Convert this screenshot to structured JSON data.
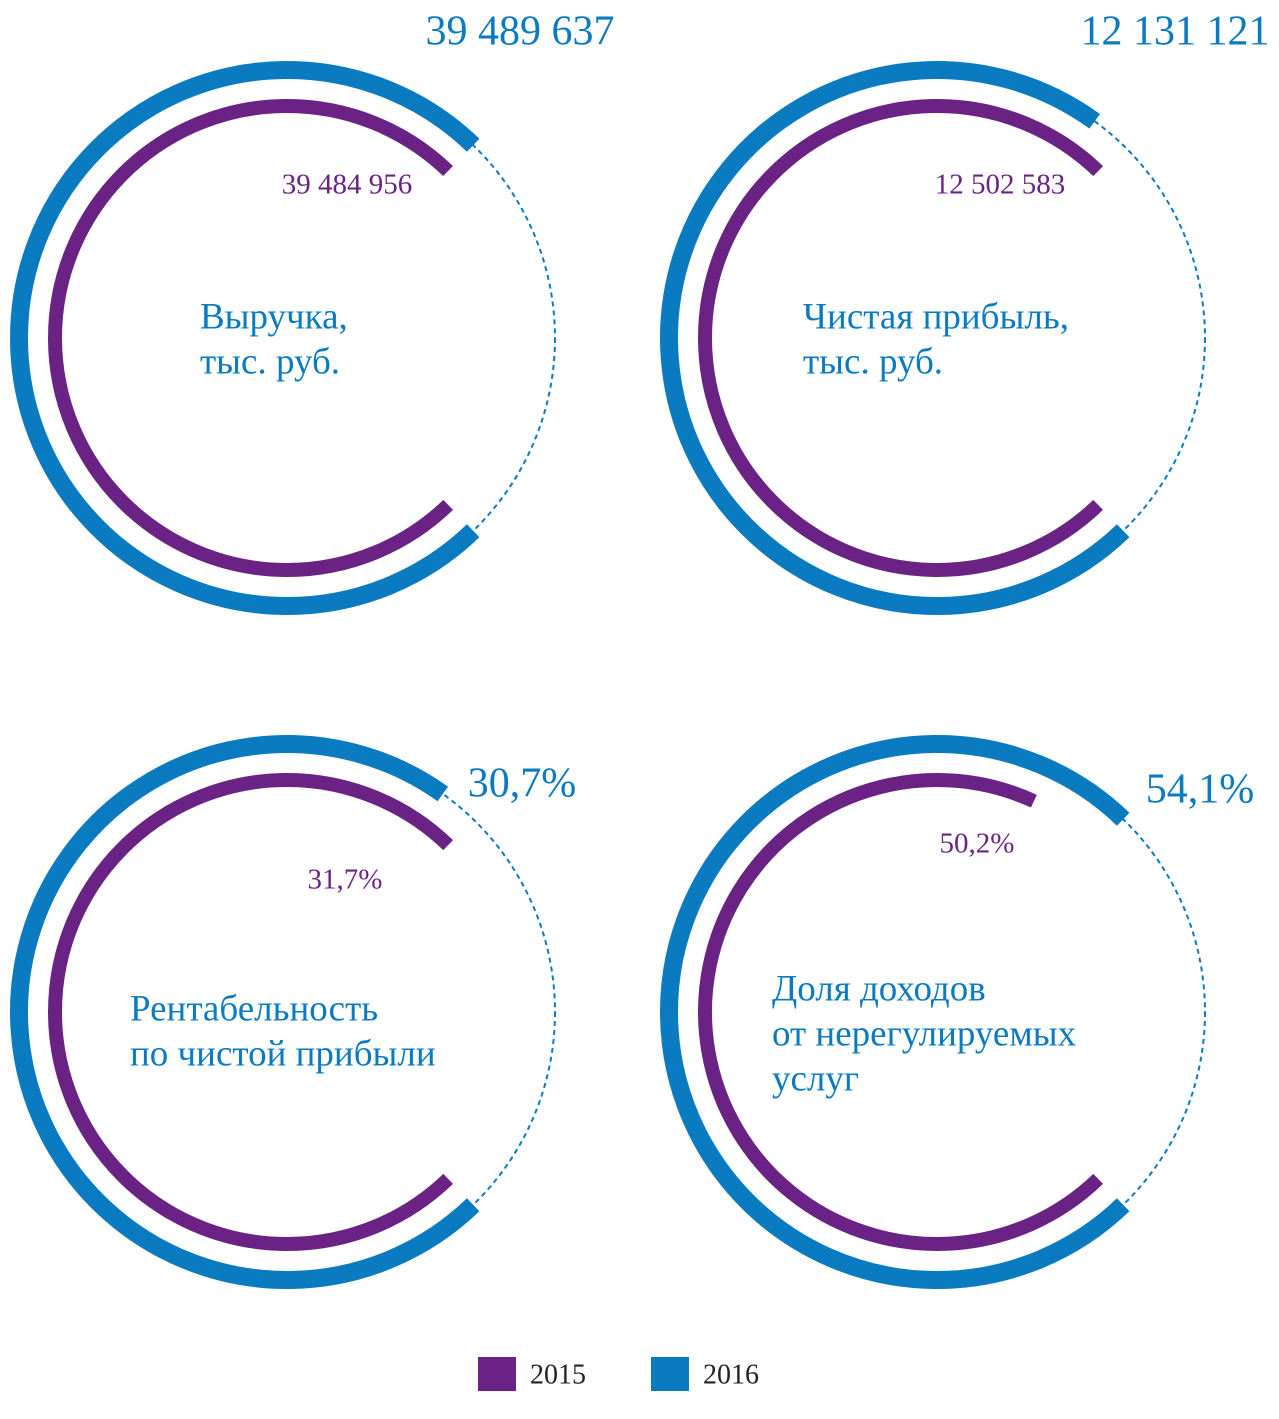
{
  "chart_data": [
    {
      "type": "radial_bar",
      "title": [
        "Выручка,",
        "тыс. руб."
      ],
      "series": [
        {
          "name": "2015",
          "color": "#6a2384",
          "values": [
            39484956
          ],
          "value_labels": [
            "39 484 956"
          ]
        },
        {
          "name": "2016",
          "color": "#0a7bc1",
          "values": [
            39489637
          ],
          "value_labels": [
            "39 489 637"
          ]
        }
      ]
    },
    {
      "type": "radial_bar",
      "title": [
        "Чистая прибыль,",
        "тыс. руб."
      ],
      "series": [
        {
          "name": "2015",
          "color": "#6a2384",
          "values": [
            12502583
          ],
          "value_labels": [
            "12 502 583"
          ]
        },
        {
          "name": "2016",
          "color": "#0a7bc1",
          "values": [
            12131121
          ],
          "value_labels": [
            "12 131 121"
          ]
        }
      ]
    },
    {
      "type": "radial_bar",
      "title": [
        "Рентабельность",
        "по чистой прибыли"
      ],
      "series": [
        {
          "name": "2015",
          "color": "#6a2384",
          "values": [
            31.7
          ],
          "value_labels": [
            "31,7%"
          ]
        },
        {
          "name": "2016",
          "color": "#0a7bc1",
          "values": [
            30.7
          ],
          "value_labels": [
            "30,7%"
          ]
        }
      ]
    },
    {
      "type": "radial_bar",
      "title": [
        "Доля доходов",
        "от нерегулируемых",
        "услуг"
      ],
      "series": [
        {
          "name": "2015",
          "color": "#6a2384",
          "values": [
            50.2
          ],
          "value_labels": [
            "50,2%"
          ]
        },
        {
          "name": "2016",
          "color": "#0a7bc1",
          "values": [
            54.1
          ],
          "value_labels": [
            "54,1%"
          ]
        }
      ]
    }
  ]
}
